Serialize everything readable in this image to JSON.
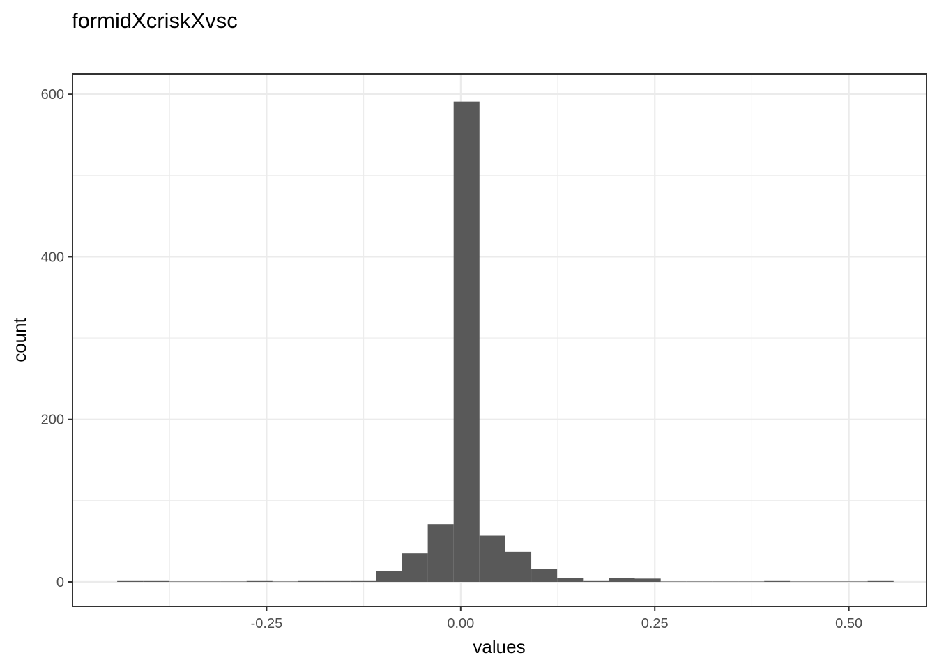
{
  "chart_data": {
    "type": "bar",
    "subtype": "histogram",
    "title": "formidXcriskXvsc",
    "xlabel": "values",
    "ylabel": "count",
    "xlim": [
      -0.5,
      0.6
    ],
    "ylim": [
      -30,
      625
    ],
    "x_ticks": [
      -0.25,
      0.0,
      0.25,
      0.5
    ],
    "x_tick_labels": [
      "-0.25",
      "0.00",
      "0.25",
      "0.50"
    ],
    "y_ticks": [
      0,
      200,
      400,
      600
    ],
    "y_tick_labels": [
      "0",
      "200",
      "400",
      "600"
    ],
    "grid": true,
    "bin_width": 0.0333,
    "bins": [
      {
        "x0": -0.4424,
        "x1": -0.4091,
        "count": 1
      },
      {
        "x0": -0.4091,
        "x1": -0.3758,
        "count": 1
      },
      {
        "x0": -0.3758,
        "x1": -0.3424,
        "count": 0
      },
      {
        "x0": -0.3424,
        "x1": -0.3091,
        "count": 0
      },
      {
        "x0": -0.3091,
        "x1": -0.2758,
        "count": 0
      },
      {
        "x0": -0.2758,
        "x1": -0.2424,
        "count": 1
      },
      {
        "x0": -0.2424,
        "x1": -0.2091,
        "count": 0
      },
      {
        "x0": -0.2091,
        "x1": -0.1758,
        "count": 1
      },
      {
        "x0": -0.1758,
        "x1": -0.1424,
        "count": 1
      },
      {
        "x0": -0.1424,
        "x1": -0.1091,
        "count": 1
      },
      {
        "x0": -0.1091,
        "x1": -0.0758,
        "count": 13
      },
      {
        "x0": -0.0758,
        "x1": -0.0424,
        "count": 35
      },
      {
        "x0": -0.0424,
        "x1": -0.0091,
        "count": 71
      },
      {
        "x0": -0.0091,
        "x1": 0.0242,
        "count": 591
      },
      {
        "x0": 0.0242,
        "x1": 0.0576,
        "count": 57
      },
      {
        "x0": 0.0576,
        "x1": 0.0909,
        "count": 37
      },
      {
        "x0": 0.0909,
        "x1": 0.1242,
        "count": 16
      },
      {
        "x0": 0.1242,
        "x1": 0.1576,
        "count": 5
      },
      {
        "x0": 0.1576,
        "x1": 0.1909,
        "count": 1
      },
      {
        "x0": 0.1909,
        "x1": 0.2242,
        "count": 5
      },
      {
        "x0": 0.2242,
        "x1": 0.2576,
        "count": 4
      },
      {
        "x0": 0.2576,
        "x1": 0.2909,
        "count": 0
      },
      {
        "x0": 0.2909,
        "x1": 0.3242,
        "count": 0
      },
      {
        "x0": 0.3242,
        "x1": 0.3576,
        "count": 0
      },
      {
        "x0": 0.3576,
        "x1": 0.3909,
        "count": 0
      },
      {
        "x0": 0.3909,
        "x1": 0.4242,
        "count": 1
      },
      {
        "x0": 0.4242,
        "x1": 0.4576,
        "count": 0
      },
      {
        "x0": 0.4576,
        "x1": 0.4909,
        "count": 0
      },
      {
        "x0": 0.4909,
        "x1": 0.5242,
        "count": 0
      },
      {
        "x0": 0.5242,
        "x1": 0.5576,
        "count": 1
      }
    ]
  },
  "colors": {
    "bar": "#595959",
    "panel_border": "#333333",
    "grid": "#ebebeb",
    "tick_label": "#4d4d4d"
  }
}
